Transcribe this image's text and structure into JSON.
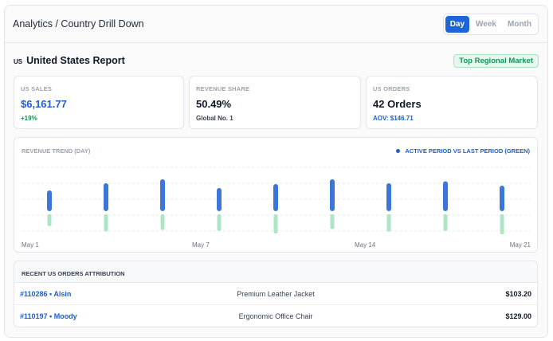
{
  "header": {
    "title": "Analytics / Country Drill Down",
    "periods": [
      {
        "label": "Day",
        "active": true
      },
      {
        "label": "Week",
        "active": false
      },
      {
        "label": "Month",
        "active": false
      }
    ]
  },
  "report": {
    "country_code": "US",
    "title": "United States Report",
    "badge": "Top Regional Market"
  },
  "kpis": {
    "sales": {
      "label": "US SALES",
      "value": "$6,161.77",
      "sub": "+19%"
    },
    "share": {
      "label": "REVENUE SHARE",
      "value": "50.49%",
      "sub": "Global No. 1"
    },
    "orders": {
      "label": "US ORDERS",
      "value": "42 Orders",
      "sub": "AOV: $146.71"
    }
  },
  "trend": {
    "label": "REVENUE TREND (DAY)",
    "legend": "ACTIVE PERIOD VS LAST PERIOD (GREEN)",
    "x_labels": [
      "May 1",
      "May 7",
      "May 14",
      "May 21"
    ],
    "colors": {
      "active": "#3a77d9",
      "last": "#aee6c5",
      "grid": "#e6e8ec"
    }
  },
  "chart_data": {
    "type": "bar",
    "x_tick_labels": [
      "May 1",
      "May 7",
      "May 14",
      "May 21"
    ],
    "series": [
      {
        "name": "Active period",
        "values": [
          0.52,
          0.7,
          0.8,
          0.58,
          0.68,
          0.8,
          0.7,
          0.75,
          0.64
        ]
      },
      {
        "name": "Last period",
        "values": [
          0.4,
          0.58,
          0.53,
          0.56,
          0.65,
          0.5,
          0.58,
          0.56,
          0.68
        ]
      }
    ]
  },
  "orders": {
    "title": "RECENT US ORDERS ATTRIBUTION",
    "rows": [
      {
        "id": "#110286 • Alsin",
        "product": "Premium Leather Jacket",
        "amount": "$103.20"
      },
      {
        "id": "#110197 • Moody",
        "product": "Ergonomic Office Chair",
        "amount": "$129.00"
      }
    ]
  }
}
